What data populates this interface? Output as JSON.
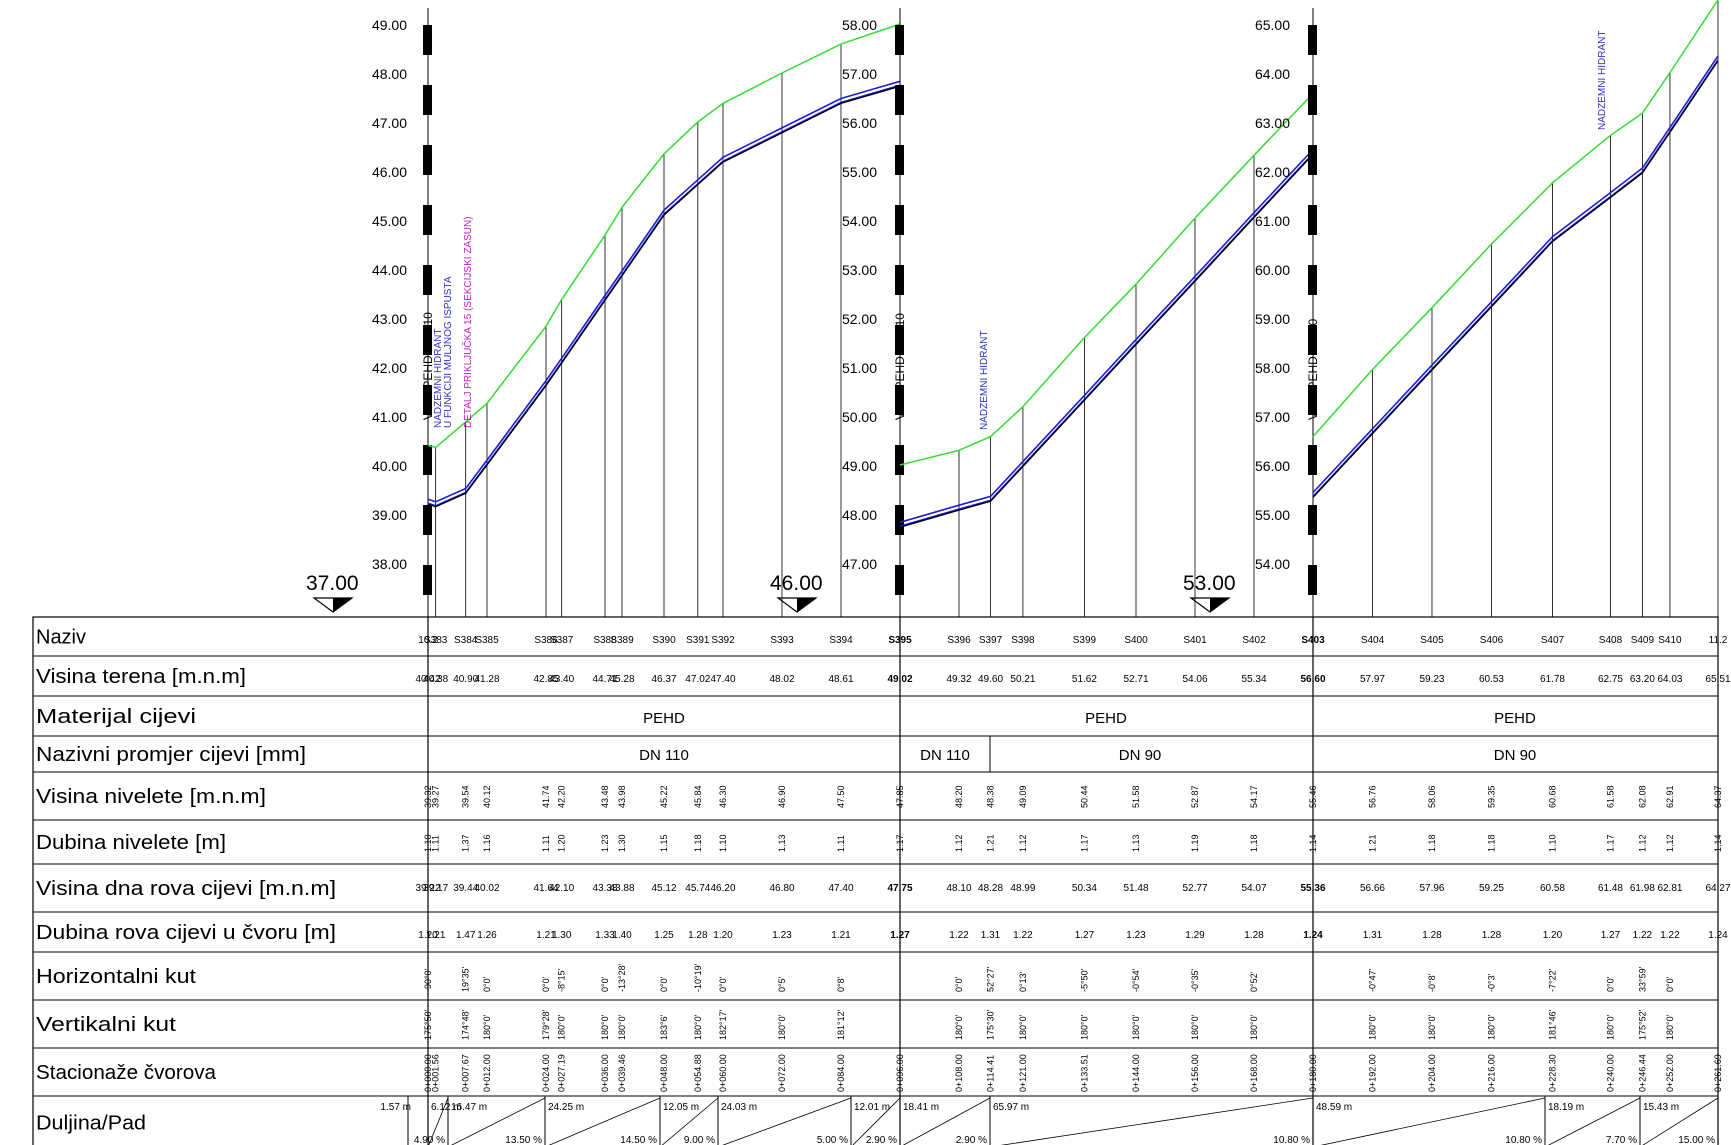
{
  "datum_markers": [
    "37.00",
    "46.00",
    "53.00"
  ],
  "sections": [
    {
      "name": "section-1",
      "y_ticks": [
        "49.00",
        "48.00",
        "47.00",
        "46.00",
        "45.00",
        "44.00",
        "43.00",
        "42.00",
        "41.00",
        "40.00",
        "39.00",
        "38.00"
      ],
      "y_range": [
        37.5,
        49.0
      ],
      "vertical_annotations": [
        "NADZEMNI HIDRANT",
        "U FUNKCIJI MULJNOG ISPUSTA",
        "DETALJ PRIKLJUČKA 15 (SEKCIJSKI ZASUN)"
      ],
      "node_label_overlay": "V-10: PEHD DN 110"
    },
    {
      "name": "section-2",
      "y_ticks": [
        "58.00",
        "57.00",
        "56.00",
        "55.00",
        "54.00",
        "53.00",
        "52.00",
        "51.00",
        "50.00",
        "49.00",
        "48.00",
        "47.00"
      ],
      "y_range": [
        46.5,
        58.0
      ],
      "vertical_annotations": [
        "NADZEMNI HIDRANT"
      ],
      "node_label_overlay": "V-11: PEHD DN 110"
    },
    {
      "name": "section-3",
      "y_ticks": [
        "65.00",
        "64.00",
        "63.00",
        "62.00",
        "61.00",
        "60.00",
        "59.00",
        "58.00",
        "57.00",
        "56.00",
        "55.00",
        "54.00"
      ],
      "y_range": [
        53.5,
        65.0
      ],
      "vertical_annotations": [
        "NADZEMNI HIDRANT"
      ],
      "node_label_overlay": "V-11: PEHD DN 90"
    }
  ],
  "table": {
    "row_labels": [
      "Naziv",
      "Visina terena [m.n.m]",
      "Materijal cijevi",
      "Nazivni promjer cijevi [mm]",
      "Visina nivelete [m.n.m]",
      "Dubina nivelete [m]",
      "Visina dna rova cijevi [m.n.m]",
      "Dubina rova cijevi u čvoru [m]",
      "Horizontalni kut",
      "Vertikalni kut",
      "Stacionaže čvorova",
      "Duljina/Pad"
    ],
    "material": [
      "PEHD",
      "PEHD",
      "PEHD"
    ],
    "diameter": [
      "DN 110",
      "DN 110",
      "DN 90",
      "DN 90"
    ]
  },
  "chart_data": {
    "type": "line",
    "title": "",
    "series": [
      {
        "name": "Visina terena",
        "color": "#33dd33"
      },
      {
        "name": "Visina nivelete",
        "color": "#1c1cd6"
      },
      {
        "name": "Visina dna rova cijevi",
        "color": "#000000"
      }
    ],
    "nodes": [
      {
        "name": "10.2",
        "sta": "0+000.00",
        "ter": "40.42",
        "niv": "39.32",
        "dub": "1.10",
        "dno": "39.22",
        "rov": "1.20",
        "hk": "-90°0'",
        "vk": "175°50'"
      },
      {
        "name": "S383",
        "sta": "0+001.56",
        "ter": "40.38",
        "niv": "39.27",
        "dub": "1.11",
        "dno": "39.17",
        "rov": "1.21",
        "hk": "",
        "vk": ""
      },
      {
        "name": "S384",
        "sta": "0+007.67",
        "ter": "40.90",
        "niv": "39.54",
        "dub": "1.37",
        "dno": "39.44",
        "rov": "1.47",
        "hk": "19°35'",
        "vk": "174°48'"
      },
      {
        "name": "S385",
        "sta": "0+012.00",
        "ter": "41.28",
        "niv": "40.12",
        "dub": "1.16",
        "dno": "40.02",
        "rov": "1.26",
        "hk": "0°0'",
        "vk": "180°0'"
      },
      {
        "name": "S386",
        "sta": "0+024.00",
        "ter": "42.85",
        "niv": "41.74",
        "dub": "1.11",
        "dno": "41.64",
        "rov": "1.21",
        "hk": "0°0'",
        "vk": "179°28'"
      },
      {
        "name": "S387",
        "sta": "0+027.19",
        "ter": "43.40",
        "niv": "42.20",
        "dub": "1.20",
        "dno": "42.10",
        "rov": "1.30",
        "hk": "-8°15'",
        "vk": "180°0'"
      },
      {
        "name": "S388",
        "sta": "0+036.00",
        "ter": "44.71",
        "niv": "43.48",
        "dub": "1.23",
        "dno": "43.38",
        "rov": "1.33",
        "hk": "0°0'",
        "vk": "180°0'"
      },
      {
        "name": "S389",
        "sta": "0+039.46",
        "ter": "45.28",
        "niv": "43.98",
        "dub": "1.30",
        "dno": "43.88",
        "rov": "1.40",
        "hk": "-13°28'",
        "vk": "180°0'"
      },
      {
        "name": "S390",
        "sta": "0+048.00",
        "ter": "46.37",
        "niv": "45.22",
        "dub": "1.15",
        "dno": "45.12",
        "rov": "1.25",
        "hk": "0°0'",
        "vk": "183°6'"
      },
      {
        "name": "S391",
        "sta": "0+054.88",
        "ter": "47.02",
        "niv": "45.84",
        "dub": "1.18",
        "dno": "45.74",
        "rov": "1.28",
        "hk": "-10°19'",
        "vk": "180°0'"
      },
      {
        "name": "S392",
        "sta": "0+060.00",
        "ter": "47.40",
        "niv": "46.30",
        "dub": "1.10",
        "dno": "46.20",
        "rov": "1.20",
        "hk": "0°0'",
        "vk": "182°17'"
      },
      {
        "name": "S393",
        "sta": "0+072.00",
        "ter": "48.02",
        "niv": "46.90",
        "dub": "1.13",
        "dno": "46.80",
        "rov": "1.23",
        "hk": "0°5'",
        "vk": "180°0'"
      },
      {
        "name": "S394",
        "sta": "0+084.00",
        "ter": "48.61",
        "niv": "47.50",
        "dub": "1.11",
        "dno": "47.40",
        "rov": "1.21",
        "hk": "0°8'",
        "vk": "181°12'"
      },
      {
        "name": "S395",
        "sta": "0+096.00",
        "ter": "49.02",
        "niv": "47.85",
        "dub": "1.17",
        "dno": "47.75",
        "rov": "1.27",
        "hk": "",
        "vk": ""
      },
      {
        "name": "S396",
        "sta": "0+108.00",
        "ter": "49.32",
        "niv": "48.20",
        "dub": "1.12",
        "dno": "48.10",
        "rov": "1.22",
        "hk": "0°0'",
        "vk": "180°0'"
      },
      {
        "name": "S397",
        "sta": "0+114.41",
        "ter": "49.60",
        "niv": "48.38",
        "dub": "1.21",
        "dno": "48.28",
        "rov": "1.31",
        "hk": "52°27'",
        "vk": "175°30'"
      },
      {
        "name": "S398",
        "sta": "0+121.00",
        "ter": "50.21",
        "niv": "49.09",
        "dub": "1.12",
        "dno": "48.99",
        "rov": "1.22",
        "hk": "0°13'",
        "vk": "180°0'"
      },
      {
        "name": "S399",
        "sta": "0+133.51",
        "ter": "51.62",
        "niv": "50.44",
        "dub": "1.17",
        "dno": "50.34",
        "rov": "1.27",
        "hk": "-5°50'",
        "vk": "180°0'"
      },
      {
        "name": "S400",
        "sta": "0+144.00",
        "ter": "52.71",
        "niv": "51.58",
        "dub": "1.13",
        "dno": "51.48",
        "rov": "1.23",
        "hk": "-0°54'",
        "vk": "180°0'"
      },
      {
        "name": "S401",
        "sta": "0+156.00",
        "ter": "54.06",
        "niv": "52.87",
        "dub": "1.19",
        "dno": "52.77",
        "rov": "1.29",
        "hk": "-0°35'",
        "vk": "180°0'"
      },
      {
        "name": "S402",
        "sta": "0+168.00",
        "ter": "55.34",
        "niv": "54.17",
        "dub": "1.18",
        "dno": "54.07",
        "rov": "1.28",
        "hk": "0°52'",
        "vk": "180°0'"
      },
      {
        "name": "S403",
        "sta": "0+180.00",
        "ter": "56.60",
        "niv": "55.46",
        "dub": "1.14",
        "dno": "55.36",
        "rov": "1.24",
        "hk": "",
        "vk": ""
      },
      {
        "name": "S404",
        "sta": "0+192.00",
        "ter": "57.97",
        "niv": "56.76",
        "dub": "1.21",
        "dno": "56.66",
        "rov": "1.31",
        "hk": "-0°47'",
        "vk": "180°0'"
      },
      {
        "name": "S405",
        "sta": "0+204.00",
        "ter": "59.23",
        "niv": "58.06",
        "dub": "1.18",
        "dno": "57.96",
        "rov": "1.28",
        "hk": "-0°8'",
        "vk": "180°0'"
      },
      {
        "name": "S406",
        "sta": "0+216.00",
        "ter": "60.53",
        "niv": "59.35",
        "dub": "1.18",
        "dno": "59.25",
        "rov": "1.28",
        "hk": "-0°3'",
        "vk": "180°0'"
      },
      {
        "name": "S407",
        "sta": "0+228.30",
        "ter": "61.78",
        "niv": "60.68",
        "dub": "1.10",
        "dno": "60.58",
        "rov": "1.20",
        "hk": "-7°22'",
        "vk": "181°46'"
      },
      {
        "name": "S408",
        "sta": "0+240.00",
        "ter": "62.75",
        "niv": "61.58",
        "dub": "1.17",
        "dno": "61.48",
        "rov": "1.27",
        "hk": "0°0'",
        "vk": "180°0'"
      },
      {
        "name": "S409",
        "sta": "0+246.44",
        "ter": "63.20",
        "niv": "62.08",
        "dub": "1.12",
        "dno": "61.98",
        "rov": "1.22",
        "hk": "33°59'",
        "vk": "175°52'"
      },
      {
        "name": "S410",
        "sta": "0+252.00",
        "ter": "64.03",
        "niv": "62.91",
        "dub": "1.12",
        "dno": "62.81",
        "rov": "1.22",
        "hk": "0°0'",
        "vk": "180°0'"
      },
      {
        "name": "11.2",
        "sta": "0+261.69",
        "ter": "65.51",
        "niv": "64.37",
        "dub": "1.14",
        "dno": "64.27",
        "rov": "1.24",
        "hk": "",
        "vk": ""
      }
    ],
    "segments": [
      {
        "len": "1.57 m",
        "slope": ""
      },
      {
        "len": "6.12 m",
        "slope": "4.90 %"
      },
      {
        "len": "16.47 m",
        "slope": "13.50 %"
      },
      {
        "len": "24.25 m",
        "slope": "14.50 %"
      },
      {
        "len": "12.05 m",
        "slope": "9.00 %"
      },
      {
        "len": "24.03 m",
        "slope": "5.00 %"
      },
      {
        "len": "12.01 m",
        "slope": "2.90 %"
      },
      {
        "len": "18.41 m",
        "slope": "2.90 %"
      },
      {
        "len": "65.97 m",
        "slope": "10.80 %"
      },
      {
        "len": "48.59 m",
        "slope": "10.80 %"
      },
      {
        "len": "18.19 m",
        "slope": "7.70 %"
      },
      {
        "len": "15.43 m",
        "slope": "15.00 %"
      }
    ]
  }
}
